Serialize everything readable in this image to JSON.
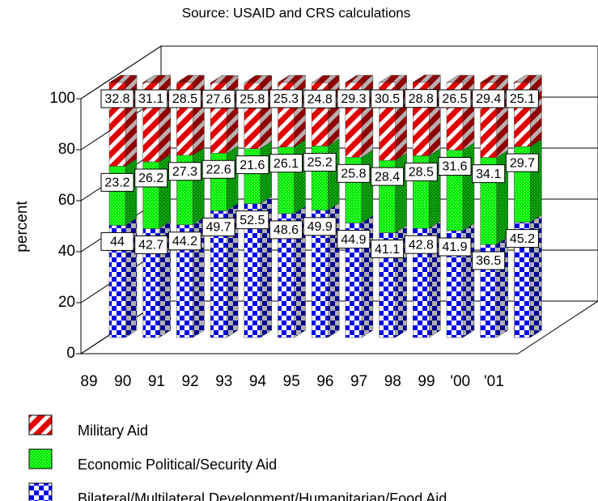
{
  "chart_data": {
    "type": "bar3d_stacked",
    "title": "Source: USAID and CRS calculations",
    "ylabel": "percent",
    "categories": [
      "89",
      "90",
      "91",
      "92",
      "93",
      "94",
      "95",
      "96",
      "97",
      "98",
      "99",
      "'00",
      "'01"
    ],
    "series": [
      {
        "name": "Military Aid",
        "color": "#e00000",
        "values": [
          32.8,
          31.1,
          28.5,
          27.6,
          25.8,
          25.3,
          24.8,
          29.3,
          30.5,
          28.8,
          26.5,
          29.4,
          25.1
        ]
      },
      {
        "name": "Economic Political/Security Aid",
        "color": "#00e000",
        "values": [
          23.2,
          26.2,
          27.3,
          22.6,
          21.6,
          26.1,
          25.2,
          25.8,
          28.4,
          28.5,
          31.6,
          34.1,
          29.7
        ]
      },
      {
        "name": "Bilateral/Multilateral Development/Humanitarian/Food Aid",
        "color": "#0000f0",
        "values": [
          44,
          42.7,
          44.2,
          49.7,
          52.5,
          48.6,
          49.9,
          44.9,
          41.1,
          42.8,
          41.9,
          36.5,
          45.2
        ]
      }
    ],
    "ylim": [
      0,
      100
    ],
    "yticks": [
      0,
      20,
      40,
      60,
      80,
      100
    ],
    "grid": true,
    "stacked": true
  }
}
